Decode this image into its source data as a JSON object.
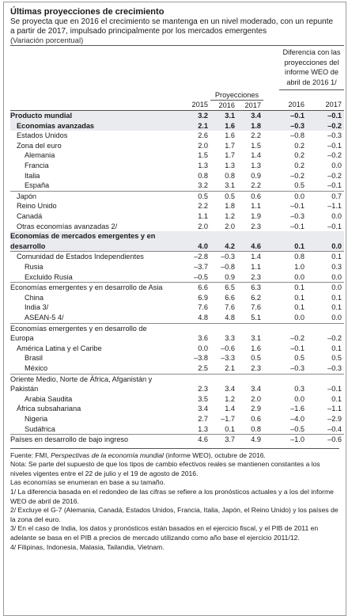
{
  "title": "Últimas proyecciones de crecimiento",
  "subtitle": "Se proyecta que en 2016 el crecimiento se mantenga en un nivel moderado, con un repunte a partir de 2017, impulsado principalmente por los mercados emergentes",
  "units": "(Variación porcentual)",
  "header": {
    "projections": "Proyecciones",
    "difference": "Diferencia con las proyecciones del informe WEO de abril de 2016 1/",
    "years": [
      "2015",
      "2016",
      "2017",
      "2016",
      "2017"
    ]
  },
  "rows": [
    {
      "label": "Producto mundial",
      "v": [
        "3.2",
        "3.1",
        "3.4",
        "–0.1",
        "–0.1"
      ]
    },
    {
      "label": "Economías avanzadas",
      "v": [
        "2.1",
        "1.6",
        "1.8",
        "–0.3",
        "–0.2"
      ]
    },
    {
      "label": "Estados Unidos",
      "v": [
        "2.6",
        "1.6",
        "2.2",
        "–0.8",
        "–0.3"
      ]
    },
    {
      "label": "Zona del euro",
      "v": [
        "2.0",
        "1.7",
        "1.5",
        "0.2",
        "–0.1"
      ]
    },
    {
      "label": "Alemania",
      "v": [
        "1.5",
        "1.7",
        "1.4",
        "0.2",
        "–0.2"
      ]
    },
    {
      "label": "Francia",
      "v": [
        "1.3",
        "1.3",
        "1.3",
        "0.2",
        "0.0"
      ]
    },
    {
      "label": "Italia",
      "v": [
        "0.8",
        "0.8",
        "0.9",
        "–0.2",
        "–0.2"
      ]
    },
    {
      "label": "España",
      "v": [
        "3.2",
        "3.1",
        "2.2",
        "0.5",
        "–0.1"
      ]
    },
    {
      "label": "Japón",
      "v": [
        "0.5",
        "0.5",
        "0.6",
        "0.0",
        "0.7"
      ]
    },
    {
      "label": "Reino Unido",
      "v": [
        "2.2",
        "1.8",
        "1.1",
        "–0.1",
        "–1.1"
      ]
    },
    {
      "label": "Canadá",
      "v": [
        "1.1",
        "1.2",
        "1.9",
        "–0.3",
        "0.0"
      ]
    },
    {
      "label": "Otras economías avanzadas 2/",
      "v": [
        "2.0",
        "2.0",
        "2.3",
        "–0.1",
        "–0.1"
      ]
    },
    {
      "label": "Economías de mercados emergentes y en",
      "v": [
        "",
        "",
        "",
        "",
        ""
      ]
    },
    {
      "label": "desarrollo",
      "v": [
        "4.0",
        "4.2",
        "4.6",
        "0.1",
        "0.0"
      ]
    },
    {
      "label": "Comunidad de Estados Independientes",
      "v": [
        "–2.8",
        "–0.3",
        "1.4",
        "0.8",
        "0.1"
      ]
    },
    {
      "label": "Rusia",
      "v": [
        "–3.7",
        "–0.8",
        "1.1",
        "1.0",
        "0.3"
      ]
    },
    {
      "label": "Excluido Rusia",
      "v": [
        "–0.5",
        "0.9",
        "2.3",
        "0.0",
        "0.0"
      ]
    },
    {
      "label": "Economías emergentes y en desarrollo de Asia",
      "v": [
        "6.6",
        "6.5",
        "6.3",
        "0.1",
        "0.0"
      ]
    },
    {
      "label": "China",
      "v": [
        "6.9",
        "6.6",
        "6.2",
        "0.1",
        "0.1"
      ]
    },
    {
      "label": "India 3/",
      "v": [
        "7.6",
        "7.6",
        "7.6",
        "0.1",
        "0.1"
      ]
    },
    {
      "label": "ASEAN-5 4/",
      "v": [
        "4.8",
        "4.8",
        "5.1",
        "0.0",
        "0.0"
      ]
    },
    {
      "label": "Economías emergentes y en desarrollo de",
      "v": [
        "",
        "",
        "",
        "",
        ""
      ]
    },
    {
      "label": "Europa",
      "v": [
        "3.6",
        "3.3",
        "3.1",
        "–0.2",
        "–0.2"
      ]
    },
    {
      "label": "América Latina y el Caribe",
      "v": [
        "0.0",
        "–0.6",
        "1.6",
        "–0.1",
        "0.1"
      ]
    },
    {
      "label": "Brasil",
      "v": [
        "–3.8",
        "–3.3",
        "0.5",
        "0.5",
        "0.5"
      ]
    },
    {
      "label": "México",
      "v": [
        "2.5",
        "2.1",
        "2.3",
        "–0.3",
        "–0.3"
      ]
    },
    {
      "label": "Oriente Medio, Norte de África, Afganistán y",
      "v": [
        "",
        "",
        "",
        "",
        ""
      ]
    },
    {
      "label": "Pakistán",
      "v": [
        "2.3",
        "3.4",
        "3.4",
        "0.3",
        "–0.1"
      ]
    },
    {
      "label": "Arabia Saudita",
      "v": [
        "3.5",
        "1.2",
        "2.0",
        "0.0",
        "0.1"
      ]
    },
    {
      "label": "África subsahariana",
      "v": [
        "3.4",
        "1.4",
        "2.9",
        "–1.6",
        "–1.1"
      ]
    },
    {
      "label": "Nigeria",
      "v": [
        "2.7",
        "–1.7",
        "0.6",
        "–4.0",
        "–2.9"
      ]
    },
    {
      "label": "Sudáfrica",
      "v": [
        "1.3",
        "0.1",
        "0.8",
        "–0.5",
        "–0.4"
      ]
    },
    {
      "label": "Países en desarrollo de bajo ingreso",
      "v": [
        "4.6",
        "3.7",
        "4.9",
        "–1.0",
        "–0.6"
      ]
    }
  ],
  "footnotes": {
    "source_prefix": "Fuente: FMI, ",
    "source_italic": "Perspectivas de la economía mundial",
    "source_suffix": " (informe WEO), octubre de 2016.",
    "note": "Nota: Se parte del supuesto de que los tipos de cambio efectivos reales se mantienen constantes a los niveles vigentes entre el 22 de julio y el 19 de agosto de 2016.",
    "order": "Las economías se enumeran en base a su tamaño.",
    "n1": "1/ La diferencia basada en el redondeo de las cifras se refiere a los pronósticos actuales y a los del informe WEO de abril de 2016.",
    "n2": "2/ Excluye el G-7 (Alemania, Canadá, Estados Unidos, Francia, Italia, Japón, el Reino Unido) y los países de la zona del euro.",
    "n3": "3/ En el caso de India, los datos y pronósticos están basados en el ejercicio fiscal, y el PIB de 2011 en adelante se basa en el PIB a precios de mercado utilizando como año base el ejercicio 2011/12.",
    "n4": "4/ Filipinas, Indonesia, Malasia, Tailandia, Vietnam."
  }
}
